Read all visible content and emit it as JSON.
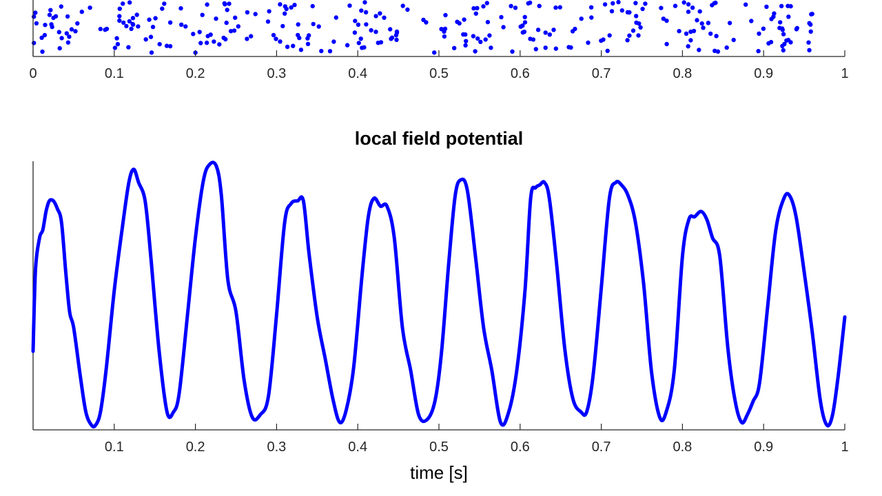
{
  "colors": {
    "data": "#0000ff",
    "axis": "#262626"
  },
  "chart_data": [
    {
      "type": "scatter",
      "title": "",
      "xlabel": "",
      "ylabel": "",
      "xlim": [
        0,
        1
      ],
      "x_ticks": [
        "0",
        "0.1",
        "0.2",
        "0.3",
        "0.4",
        "0.5",
        "0.6",
        "0.7",
        "0.8",
        "0.9",
        "1"
      ],
      "burst_centers": [
        0.025,
        0.125,
        0.225,
        0.33,
        0.425,
        0.525,
        0.625,
        0.725,
        0.82,
        0.925
      ],
      "background_rate": "sparse",
      "y_ticks": []
    },
    {
      "type": "line",
      "title": "local field potential",
      "xlabel": "time [s]",
      "ylabel": "",
      "xlim": [
        0,
        1
      ],
      "ylim": [
        0,
        1
      ],
      "x_ticks": [
        "0.1",
        "0.2",
        "0.3",
        "0.4",
        "0.5",
        "0.6",
        "0.7",
        "0.8",
        "0.9",
        "1"
      ],
      "y_ticks": [],
      "series": [
        {
          "x": [
            0,
            0.003,
            0.008,
            0.012,
            0.016,
            0.02,
            0.025,
            0.03,
            0.035,
            0.04,
            0.045,
            0.05,
            0.058,
            0.065,
            0.072,
            0.077,
            0.083,
            0.09,
            0.1,
            0.11,
            0.118,
            0.124,
            0.13,
            0.138,
            0.145,
            0.155,
            0.165,
            0.173,
            0.18,
            0.19,
            0.2,
            0.21,
            0.218,
            0.226,
            0.232,
            0.24,
            0.25,
            0.26,
            0.27,
            0.28,
            0.29,
            0.3,
            0.31,
            0.318,
            0.326,
            0.333,
            0.34,
            0.35,
            0.36,
            0.37,
            0.378,
            0.386,
            0.395,
            0.405,
            0.413,
            0.42,
            0.428,
            0.436,
            0.445,
            0.455,
            0.465,
            0.475,
            0.485,
            0.495,
            0.503,
            0.512,
            0.52,
            0.527,
            0.535,
            0.545,
            0.555,
            0.565,
            0.576,
            0.586,
            0.596,
            0.606,
            0.613,
            0.619,
            0.624,
            0.63,
            0.636,
            0.645,
            0.655,
            0.665,
            0.675,
            0.682,
            0.69,
            0.7,
            0.71,
            0.718,
            0.725,
            0.733,
            0.742,
            0.752,
            0.762,
            0.772,
            0.78,
            0.79,
            0.8,
            0.808,
            0.815,
            0.823,
            0.83,
            0.837,
            0.846,
            0.856,
            0.865,
            0.873,
            0.88,
            0.887,
            0.895,
            0.905,
            0.915,
            0.925,
            0.932,
            0.94,
            0.95,
            0.96,
            0.97,
            0.978,
            0.985,
            0.992,
            1.0
          ],
          "y": [
            0.29,
            0.6,
            0.72,
            0.75,
            0.82,
            0.86,
            0.86,
            0.83,
            0.78,
            0.6,
            0.44,
            0.38,
            0.2,
            0.06,
            0.01,
            0.01,
            0.06,
            0.22,
            0.52,
            0.76,
            0.93,
            0.98,
            0.93,
            0.86,
            0.65,
            0.3,
            0.06,
            0.06,
            0.13,
            0.42,
            0.72,
            0.94,
            1.0,
            0.99,
            0.88,
            0.56,
            0.44,
            0.18,
            0.04,
            0.05,
            0.12,
            0.43,
            0.78,
            0.85,
            0.86,
            0.86,
            0.66,
            0.42,
            0.26,
            0.1,
            0.02,
            0.07,
            0.23,
            0.57,
            0.8,
            0.87,
            0.84,
            0.84,
            0.72,
            0.38,
            0.22,
            0.05,
            0.03,
            0.1,
            0.28,
            0.62,
            0.88,
            0.94,
            0.9,
            0.65,
            0.38,
            0.22,
            0.02,
            0.06,
            0.22,
            0.52,
            0.87,
            0.91,
            0.92,
            0.93,
            0.87,
            0.62,
            0.3,
            0.11,
            0.06,
            0.06,
            0.2,
            0.53,
            0.87,
            0.93,
            0.92,
            0.88,
            0.78,
            0.55,
            0.21,
            0.04,
            0.06,
            0.22,
            0.65,
            0.79,
            0.8,
            0.82,
            0.79,
            0.72,
            0.65,
            0.3,
            0.1,
            0.02,
            0.05,
            0.1,
            0.17,
            0.46,
            0.75,
            0.87,
            0.88,
            0.8,
            0.59,
            0.36,
            0.1,
            0.01,
            0.05,
            0.2,
            0.42
          ]
        }
      ]
    }
  ]
}
